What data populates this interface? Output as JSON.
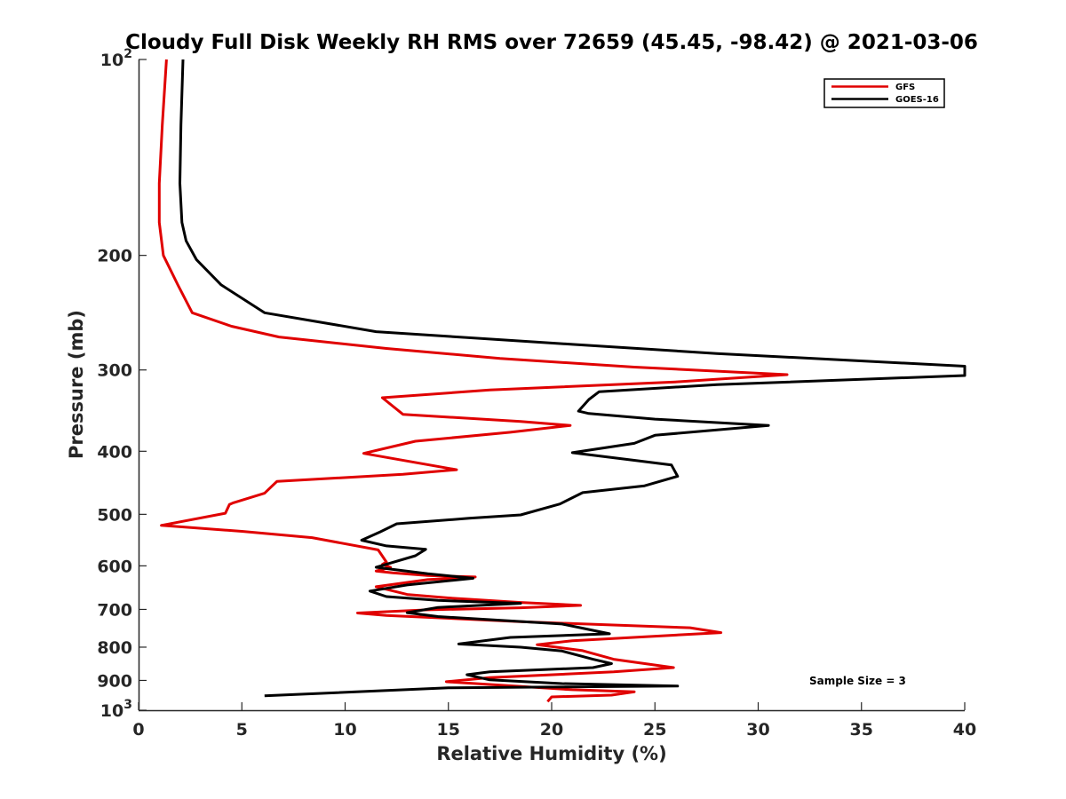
{
  "chart_data": {
    "type": "line",
    "title": "Cloudy Full Disk Weekly RH RMS over 72659 (45.45, -98.42) @ 2021-03-06",
    "xlabel": "Relative Humidity (%)",
    "ylabel": "Pressure (mb)",
    "xlim": [
      0,
      40
    ],
    "ylim": [
      100,
      1000
    ],
    "y_scale": "log",
    "y_reversed": true,
    "x_ticks": [
      0,
      5,
      10,
      15,
      20,
      25,
      30,
      35,
      40
    ],
    "x_tick_labels": [
      "0",
      "5",
      "10",
      "15",
      "20",
      "25",
      "30",
      "35",
      "40"
    ],
    "y_ticks": [
      100,
      200,
      300,
      400,
      500,
      600,
      700,
      800,
      900,
      1000
    ],
    "y_tick_labels": [
      "10^2",
      "200",
      "300",
      "400",
      "500",
      "600",
      "700",
      "800",
      "900",
      "10^3"
    ],
    "grid": false,
    "legend_position": "top-right",
    "annotation": "Sample Size = 3",
    "series": [
      {
        "name": "GFS",
        "color": "#e00000",
        "points": [
          [
            1.35,
            100
          ],
          [
            1.15,
            126
          ],
          [
            1.0,
            155
          ],
          [
            1.0,
            178
          ],
          [
            1.2,
            200
          ],
          [
            1.9,
            222
          ],
          [
            2.6,
            245
          ],
          [
            4.5,
            257
          ],
          [
            6.8,
            267
          ],
          [
            12.0,
            278
          ],
          [
            17.5,
            288
          ],
          [
            24.0,
            297
          ],
          [
            31.4,
            305
          ],
          [
            26.0,
            313
          ],
          [
            17.0,
            322
          ],
          [
            11.8,
            331
          ],
          [
            12.8,
            351
          ],
          [
            18.5,
            360
          ],
          [
            20.9,
            365
          ],
          [
            18.0,
            374
          ],
          [
            13.4,
            386
          ],
          [
            10.9,
            403
          ],
          [
            15.4,
            427
          ],
          [
            12.8,
            434
          ],
          [
            6.7,
            445
          ],
          [
            6.1,
            464
          ],
          [
            4.6,
            480
          ],
          [
            4.4,
            483
          ],
          [
            4.2,
            498
          ],
          [
            1.1,
            520
          ],
          [
            5.0,
            531
          ],
          [
            8.4,
            543
          ],
          [
            11.6,
            567
          ],
          [
            12.0,
            592
          ],
          [
            11.8,
            597
          ],
          [
            12.2,
            603
          ],
          [
            11.5,
            611
          ],
          [
            12.3,
            615
          ],
          [
            14.0,
            621
          ],
          [
            16.3,
            624
          ],
          [
            14.0,
            630
          ],
          [
            11.5,
            646
          ],
          [
            13.0,
            664
          ],
          [
            15.0,
            672
          ],
          [
            18.5,
            683
          ],
          [
            21.4,
            690
          ],
          [
            18.5,
            696
          ],
          [
            14.0,
            701
          ],
          [
            10.6,
            709
          ],
          [
            12.0,
            715
          ],
          [
            18.5,
            731
          ],
          [
            26.7,
            747
          ],
          [
            28.2,
            760
          ],
          [
            21.0,
            782
          ],
          [
            19.3,
            793
          ],
          [
            21.5,
            810
          ],
          [
            23.0,
            835
          ],
          [
            25.9,
            860
          ],
          [
            23.0,
            873
          ],
          [
            17.0,
            891
          ],
          [
            14.9,
            904
          ],
          [
            21.0,
            930
          ],
          [
            24.0,
            937
          ],
          [
            22.9,
            948
          ],
          [
            20.0,
            954
          ],
          [
            19.8,
            970
          ]
        ]
      },
      {
        "name": "GOES-16",
        "color": "#000000",
        "points": [
          [
            2.15,
            100
          ],
          [
            2.05,
            126
          ],
          [
            2.0,
            155
          ],
          [
            2.1,
            178
          ],
          [
            2.3,
            190
          ],
          [
            2.8,
            203
          ],
          [
            4.0,
            222
          ],
          [
            6.1,
            245
          ],
          [
            11.5,
            262
          ],
          [
            21.0,
            274
          ],
          [
            28.0,
            283
          ],
          [
            40.0,
            296
          ],
          [
            40.0,
            306
          ],
          [
            28.0,
            316
          ],
          [
            22.3,
            324
          ],
          [
            21.8,
            333
          ],
          [
            21.3,
            347
          ],
          [
            21.8,
            350
          ],
          [
            25.0,
            357
          ],
          [
            30.5,
            365
          ],
          [
            25.0,
            378
          ],
          [
            24.0,
            389
          ],
          [
            21.0,
            402
          ],
          [
            24.0,
            413
          ],
          [
            25.8,
            420
          ],
          [
            26.1,
            437
          ],
          [
            24.5,
            452
          ],
          [
            21.5,
            463
          ],
          [
            20.4,
            482
          ],
          [
            18.5,
            501
          ],
          [
            16.0,
            507
          ],
          [
            12.5,
            517
          ],
          [
            11.7,
            532
          ],
          [
            10.8,
            548
          ],
          [
            12.0,
            559
          ],
          [
            13.9,
            566
          ],
          [
            13.4,
            579
          ],
          [
            11.5,
            603
          ],
          [
            14.0,
            617
          ],
          [
            16.2,
            627
          ],
          [
            13.0,
            642
          ],
          [
            11.2,
            656
          ],
          [
            12.0,
            669
          ],
          [
            14.5,
            678
          ],
          [
            18.5,
            685
          ],
          [
            14.5,
            695
          ],
          [
            13.0,
            708
          ],
          [
            14.5,
            718
          ],
          [
            20.5,
            737
          ],
          [
            21.5,
            748
          ],
          [
            22.8,
            763
          ],
          [
            18.0,
            773
          ],
          [
            15.5,
            791
          ],
          [
            18.5,
            800
          ],
          [
            20.5,
            811
          ],
          [
            22.0,
            835
          ],
          [
            22.9,
            848
          ],
          [
            22.0,
            860
          ],
          [
            17.0,
            873
          ],
          [
            15.9,
            882
          ],
          [
            17.0,
            898
          ],
          [
            20.5,
            910
          ],
          [
            26.1,
            918
          ],
          [
            15.0,
            924
          ],
          [
            6.1,
            950
          ]
        ]
      }
    ]
  }
}
